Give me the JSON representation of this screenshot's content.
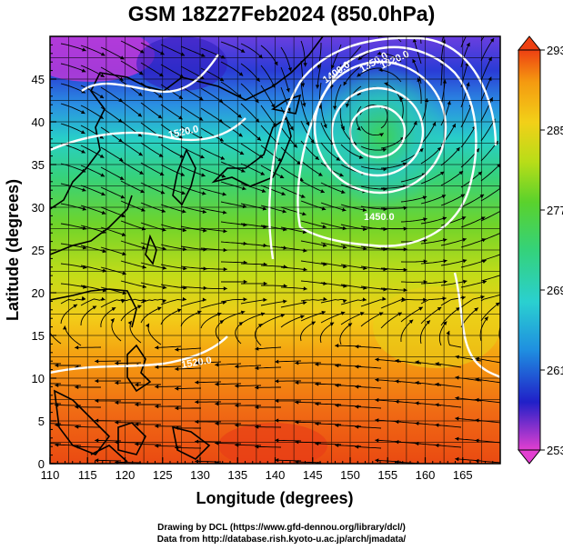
{
  "title": "GSM 18Z27Feb2024 (850.0hPa)",
  "credits": {
    "line1": "Drawing by DCL (https://www.gfd-dennou.org/library/dcl/)",
    "line2": "Data from http://database.rish.kyoto-u.ac.jp/arch/jmadata/"
  },
  "chart_data": {
    "type": "heatmap",
    "title": "GSM 18Z27Feb2024 (850.0hPa)",
    "xlabel": "Longitude (degrees)",
    "ylabel": "Latitude  (degrees)",
    "xlim": [
      110,
      170
    ],
    "ylim": [
      0,
      50
    ],
    "x_ticks": [
      "110",
      "115",
      "120",
      "125",
      "130",
      "135",
      "140",
      "145",
      "150",
      "155",
      "160",
      "165"
    ],
    "y_ticks": [
      "0",
      "5",
      "10",
      "15",
      "20",
      "25",
      "30",
      "35",
      "40",
      "45"
    ],
    "colorbar": {
      "min": 253,
      "max": 293,
      "tick_labels": [
        "293",
        "285",
        "277",
        "269",
        "261",
        "253"
      ],
      "colors": [
        "#e23fd0",
        "#2020c8",
        "#1f8fe0",
        "#2ad0d0",
        "#34d27a",
        "#5ad22c",
        "#b8dd18",
        "#f2d018",
        "#f59a10",
        "#ee4012"
      ]
    },
    "contour_labels": [
      "1400.0",
      "1350.0",
      "1320.0",
      "1520.0",
      "1450.0",
      "1520.0"
    ],
    "low_center": {
      "lon": 153,
      "lat": 40
    },
    "grid": true
  }
}
